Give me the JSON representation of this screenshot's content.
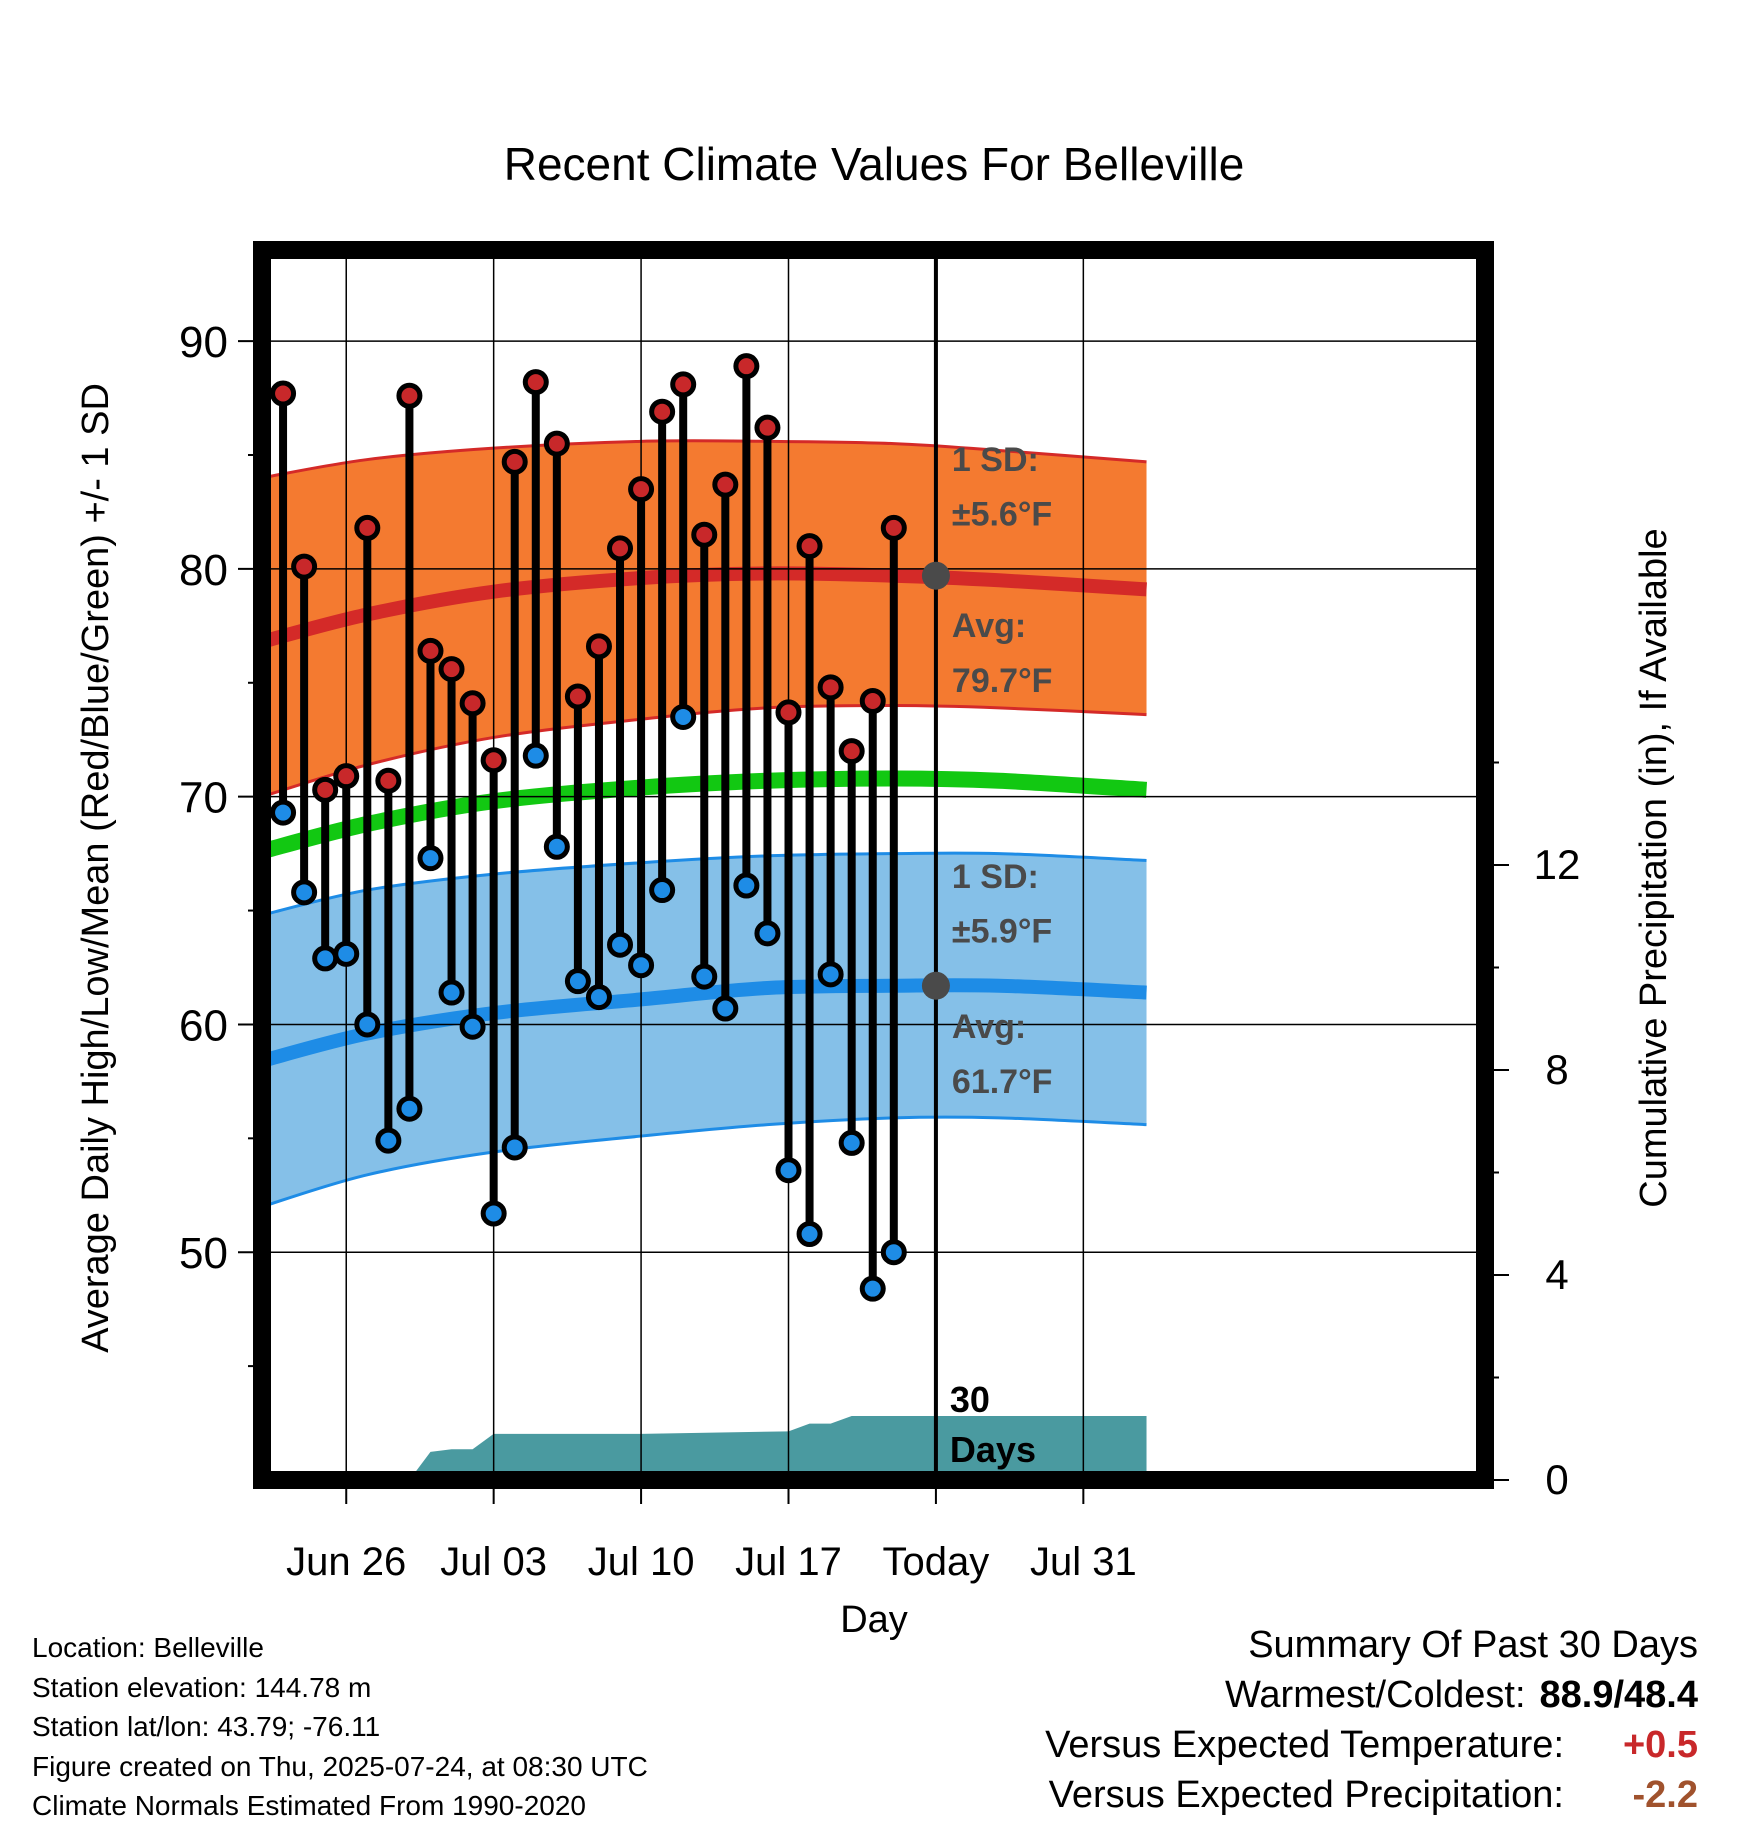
{
  "chart_data": {
    "type": "line",
    "title": "Recent Climate Values For Belleville",
    "xlabel": "Day",
    "ylabel": "Average Daily High/Low/Mean (Red/Blue/Green) +/- 1 SD",
    "y2label": "Cumulative Precipitation (in), If Available",
    "xlim": [
      "Jun 22",
      "Aug 03"
    ],
    "ylim": [
      40,
      94
    ],
    "y2lim": [
      0,
      24
    ],
    "grid": true,
    "x_ticks": [
      "Jun 26",
      "Jul 03",
      "Jul 10",
      "Jul 17",
      "Today",
      "Jul 31"
    ],
    "y_ticks": [
      50,
      60,
      70,
      80,
      90
    ],
    "y2_ticks": [
      0,
      4,
      8,
      12
    ],
    "today_marker": {
      "label_line1": "30",
      "label_line2": "Days"
    },
    "days": [
      "Jun 23",
      "Jun 24",
      "Jun 25",
      "Jun 26",
      "Jun 27",
      "Jun 28",
      "Jun 29",
      "Jun 30",
      "Jul 01",
      "Jul 02",
      "Jul 03",
      "Jul 04",
      "Jul 05",
      "Jul 06",
      "Jul 07",
      "Jul 08",
      "Jul 09",
      "Jul 10",
      "Jul 11",
      "Jul 12",
      "Jul 13",
      "Jul 14",
      "Jul 15",
      "Jul 16",
      "Jul 17",
      "Jul 18",
      "Jul 19",
      "Jul 20",
      "Jul 21",
      "Jul 22",
      "Jul 23"
    ],
    "series": [
      {
        "name": "High",
        "color": "#c8282a",
        "values": [
          87.7,
          80.1,
          70.3,
          70.9,
          81.8,
          70.7,
          87.6,
          76.4,
          75.6,
          74.1,
          71.6,
          84.7,
          88.2,
          85.5,
          74.4,
          76.6,
          80.9,
          83.5,
          86.9,
          88.1,
          81.5,
          83.7,
          88.9,
          86.2,
          73.7,
          81.0,
          74.8,
          72.0,
          74.2,
          81.8,
          null
        ]
      },
      {
        "name": "Low",
        "color": "#1e8ce6",
        "values": [
          69.3,
          65.8,
          62.9,
          63.1,
          60.0,
          54.9,
          56.3,
          67.3,
          61.4,
          59.9,
          51.7,
          54.6,
          71.8,
          67.8,
          61.9,
          61.2,
          63.5,
          62.6,
          65.9,
          73.5,
          62.1,
          60.7,
          66.1,
          64.0,
          53.6,
          50.8,
          62.2,
          54.8,
          48.4,
          50.0,
          null
        ]
      }
    ],
    "normal_high": {
      "x": [
        "Jun 22",
        "Jun 27",
        "Jul 03",
        "Jul 10",
        "Jul 16",
        "Jul 22",
        "Jul 27",
        "Aug 03"
      ],
      "mean": [
        76.8,
        78.0,
        79.0,
        79.6,
        79.8,
        79.7,
        79.5,
        79.1
      ],
      "upper": [
        84.0,
        84.8,
        85.3,
        85.6,
        85.6,
        85.5,
        85.2,
        84.7
      ],
      "lower": [
        70.0,
        71.4,
        72.6,
        73.4,
        73.9,
        74.0,
        73.9,
        73.6
      ]
    },
    "normal_low": {
      "x": [
        "Jun 22",
        "Jun 27",
        "Jul 03",
        "Jul 10",
        "Jul 16",
        "Jul 22",
        "Jul 27",
        "Aug 03"
      ],
      "mean": [
        58.4,
        59.6,
        60.5,
        61.1,
        61.6,
        61.7,
        61.7,
        61.4
      ],
      "upper": [
        64.8,
        65.9,
        66.6,
        67.1,
        67.4,
        67.5,
        67.5,
        67.2
      ],
      "lower": [
        52.0,
        53.4,
        54.4,
        55.1,
        55.6,
        55.9,
        55.9,
        55.6
      ]
    },
    "normal_mean": {
      "x": [
        "Jun 22",
        "Jun 27",
        "Jul 03",
        "Jul 10",
        "Jul 16",
        "Jul 22",
        "Jul 27",
        "Aug 03"
      ],
      "values": [
        67.6,
        68.8,
        69.8,
        70.4,
        70.7,
        70.8,
        70.7,
        70.3
      ]
    },
    "precipitation": {
      "days": [
        "Jun 22",
        "Jun 29",
        "Jun 30",
        "Jul 01",
        "Jul 02",
        "Jul 03",
        "Jul 10",
        "Jul 17",
        "Jul 18",
        "Jul 19",
        "Jul 20",
        "Aug 03"
      ],
      "values": [
        0,
        0,
        0.55,
        0.6,
        0.6,
        0.9,
        0.9,
        0.95,
        1.1,
        1.1,
        1.25,
        1.25
      ]
    },
    "annotations": [
      {
        "id": "high_sd_l1",
        "text": "1 SD:"
      },
      {
        "id": "high_sd_l2",
        "text": "±5.6°F"
      },
      {
        "id": "high_avg_l1",
        "text": "Avg:"
      },
      {
        "id": "high_avg_l2",
        "text": "79.7°F"
      },
      {
        "id": "low_sd_l1",
        "text": "1 SD:"
      },
      {
        "id": "low_sd_l2",
        "text": "±5.9°F"
      },
      {
        "id": "low_avg_l1",
        "text": "Avg:"
      },
      {
        "id": "low_avg_l2",
        "text": "61.7°F"
      }
    ],
    "colors": {
      "high_band": "#f47a30",
      "high_edge": "#d42a28",
      "low_band": "#85c0e8",
      "low_edge": "#1e8ce6",
      "mean_line": "#12c812",
      "precip_fill": "#4a9aa0",
      "annotation": "#4a4a4a"
    }
  },
  "metadata": {
    "lines": [
      "Location: Belleville",
      "Station elevation: 144.78 m",
      "Station lat/lon: 43.79; -76.11",
      "Figure created on Thu, 2025-07-24, at 08:30 UTC",
      "Climate Normals Estimated From 1990-2020"
    ]
  },
  "summary": {
    "title": "Summary Of Past 30 Days",
    "warmest_coldest_label": "Warmest/Coldest:",
    "warmest_coldest_value": "88.9/48.4",
    "temp_label": "Versus Expected Temperature:",
    "temp_value": "+0.5",
    "temp_color": "#c8282a",
    "precip_label": "Versus Expected Precipitation:",
    "precip_value": "-2.2",
    "precip_color": "#a0522d"
  }
}
